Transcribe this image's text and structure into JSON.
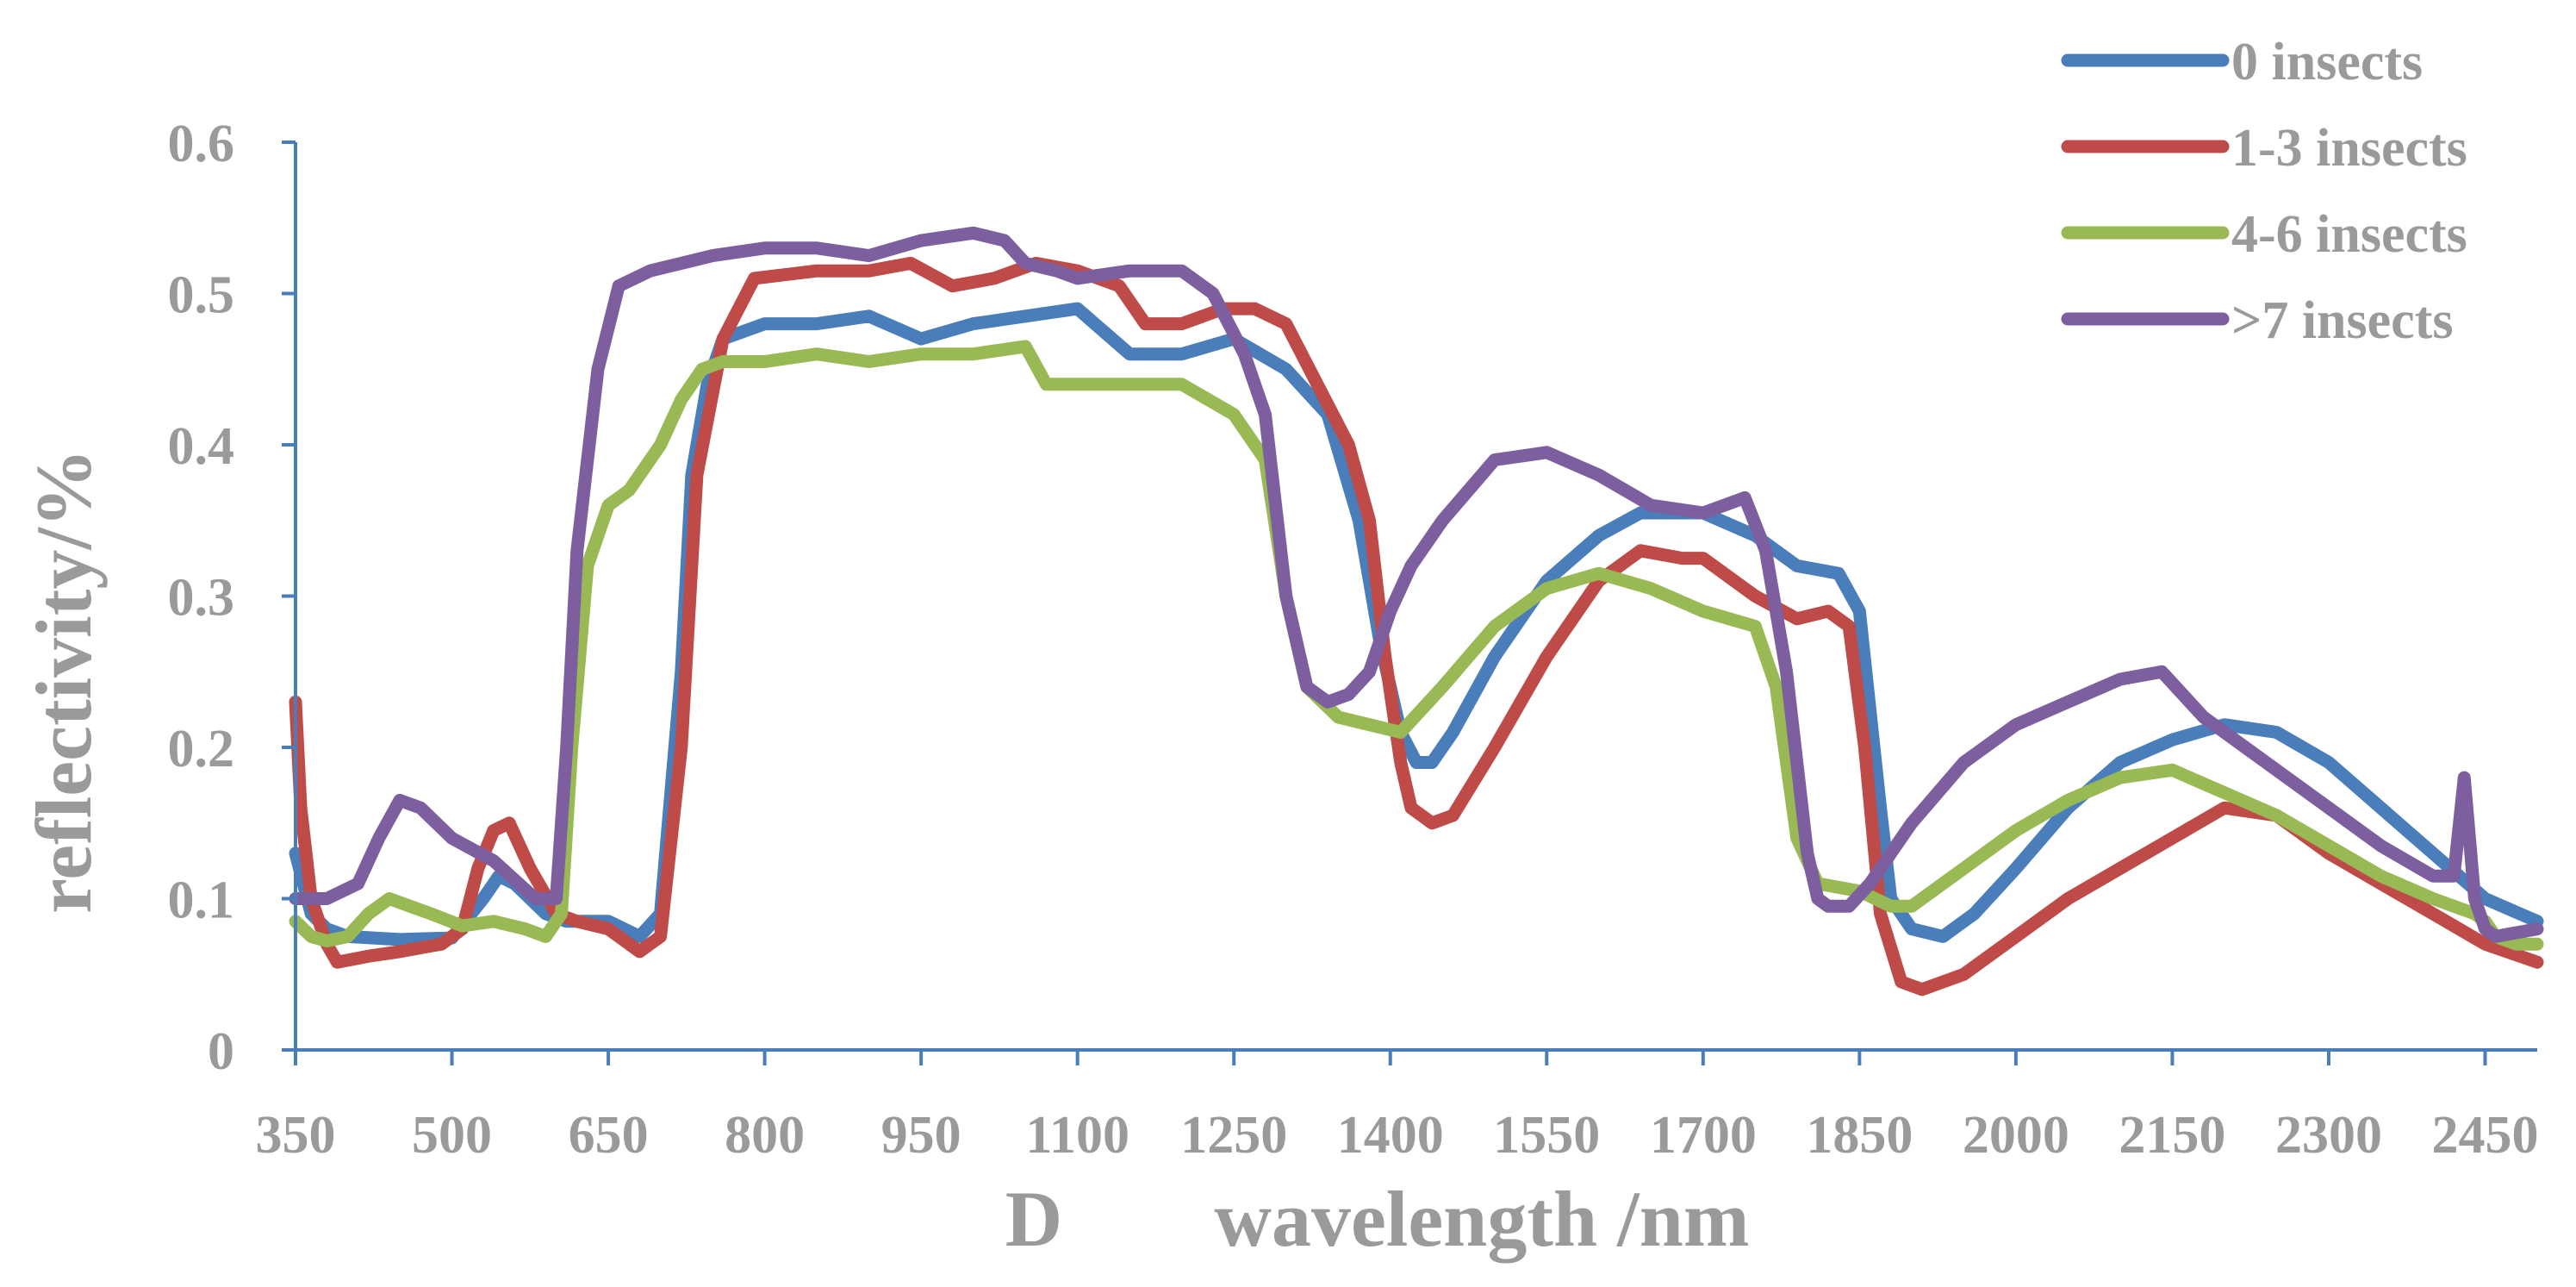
{
  "chart_data": {
    "type": "line",
    "panel_label": "D",
    "xlabel": "wavelength /nm",
    "ylabel": "reflectivity/%",
    "xlim": [
      350,
      2500
    ],
    "ylim": [
      0,
      0.6
    ],
    "x_ticks": [
      350,
      500,
      650,
      800,
      950,
      1100,
      1250,
      1400,
      1550,
      1700,
      1850,
      2000,
      2150,
      2300,
      2450
    ],
    "x_tick_labels": [
      "350",
      "500",
      "650",
      "800",
      "950",
      "1100",
      "1250",
      "1400",
      "1550",
      "1700",
      "1850",
      "2000",
      "2150",
      "2300",
      "2450"
    ],
    "y_ticks": [
      0,
      0.1,
      0.2,
      0.3,
      0.4,
      0.5,
      0.6
    ],
    "y_tick_labels": [
      "0",
      "0.1",
      "0.2",
      "0.3",
      "0.4",
      "0.5",
      "0.6"
    ],
    "legend_position": "top-right",
    "grid": false,
    "series": [
      {
        "name": "0 insects",
        "color": "#4a7ebb",
        "x": [
          350,
          365,
          380,
          400,
          450,
          500,
          530,
          545,
          560,
          590,
          610,
          650,
          680,
          700,
          720,
          730,
          745,
          760,
          800,
          850,
          900,
          950,
          1000,
          1050,
          1100,
          1150,
          1200,
          1250,
          1300,
          1340,
          1370,
          1390,
          1410,
          1425,
          1440,
          1460,
          1500,
          1550,
          1600,
          1640,
          1680,
          1700,
          1750,
          1790,
          1830,
          1850,
          1870,
          1880,
          1900,
          1930,
          1960,
          2000,
          2050,
          2100,
          2150,
          2200,
          2250,
          2300,
          2350,
          2400,
          2450,
          2500
        ],
        "y": [
          0.13,
          0.09,
          0.08,
          0.075,
          0.073,
          0.074,
          0.1,
          0.115,
          0.11,
          0.09,
          0.085,
          0.085,
          0.075,
          0.09,
          0.25,
          0.38,
          0.44,
          0.47,
          0.48,
          0.48,
          0.485,
          0.47,
          0.48,
          0.485,
          0.49,
          0.46,
          0.46,
          0.47,
          0.45,
          0.42,
          0.35,
          0.27,
          0.21,
          0.19,
          0.19,
          0.21,
          0.26,
          0.31,
          0.34,
          0.355,
          0.355,
          0.355,
          0.34,
          0.32,
          0.315,
          0.29,
          0.16,
          0.1,
          0.08,
          0.075,
          0.09,
          0.12,
          0.16,
          0.19,
          0.205,
          0.215,
          0.21,
          0.19,
          0.16,
          0.13,
          0.1,
          0.085
        ]
      },
      {
        "name": "1-3 insects",
        "color": "#be4b48",
        "x": [
          350,
          355,
          365,
          380,
          390,
          420,
          450,
          490,
          510,
          525,
          540,
          555,
          575,
          600,
          620,
          650,
          680,
          700,
          720,
          735,
          760,
          790,
          850,
          900,
          940,
          980,
          1020,
          1060,
          1100,
          1140,
          1165,
          1200,
          1240,
          1270,
          1300,
          1330,
          1360,
          1380,
          1395,
          1410,
          1420,
          1440,
          1460,
          1500,
          1550,
          1600,
          1640,
          1680,
          1700,
          1750,
          1790,
          1820,
          1840,
          1855,
          1870,
          1890,
          1910,
          1950,
          2000,
          2050,
          2100,
          2150,
          2200,
          2250,
          2300,
          2350,
          2400,
          2450,
          2500
        ],
        "y": [
          0.23,
          0.16,
          0.1,
          0.07,
          0.058,
          0.062,
          0.065,
          0.07,
          0.08,
          0.12,
          0.145,
          0.15,
          0.12,
          0.09,
          0.085,
          0.08,
          0.065,
          0.075,
          0.2,
          0.38,
          0.47,
          0.51,
          0.515,
          0.515,
          0.52,
          0.505,
          0.51,
          0.52,
          0.515,
          0.505,
          0.48,
          0.48,
          0.49,
          0.49,
          0.48,
          0.44,
          0.4,
          0.35,
          0.26,
          0.19,
          0.16,
          0.15,
          0.155,
          0.2,
          0.26,
          0.31,
          0.33,
          0.325,
          0.325,
          0.3,
          0.285,
          0.29,
          0.28,
          0.2,
          0.09,
          0.045,
          0.04,
          0.05,
          0.075,
          0.1,
          0.12,
          0.14,
          0.16,
          0.155,
          0.13,
          0.11,
          0.09,
          0.07,
          0.058
        ]
      },
      {
        "name": "4-6 insects",
        "color": "#98b954",
        "x": [
          350,
          365,
          380,
          400,
          420,
          440,
          460,
          480,
          510,
          540,
          570,
          590,
          605,
          615,
          630,
          650,
          670,
          700,
          720,
          740,
          760,
          800,
          850,
          900,
          950,
          1000,
          1050,
          1070,
          1100,
          1150,
          1200,
          1250,
          1280,
          1300,
          1320,
          1350,
          1380,
          1410,
          1450,
          1500,
          1550,
          1600,
          1650,
          1700,
          1750,
          1770,
          1790,
          1810,
          1850,
          1880,
          1900,
          1950,
          2000,
          2050,
          2100,
          2150,
          2200,
          2250,
          2300,
          2350,
          2400,
          2440,
          2450,
          2460,
          2480,
          2500
        ],
        "y": [
          0.085,
          0.075,
          0.072,
          0.075,
          0.09,
          0.1,
          0.095,
          0.09,
          0.082,
          0.085,
          0.08,
          0.075,
          0.09,
          0.2,
          0.32,
          0.36,
          0.37,
          0.4,
          0.43,
          0.45,
          0.455,
          0.455,
          0.46,
          0.455,
          0.46,
          0.46,
          0.465,
          0.44,
          0.44,
          0.44,
          0.44,
          0.42,
          0.39,
          0.3,
          0.24,
          0.22,
          0.215,
          0.21,
          0.24,
          0.28,
          0.305,
          0.315,
          0.305,
          0.29,
          0.28,
          0.24,
          0.14,
          0.11,
          0.105,
          0.095,
          0.095,
          0.12,
          0.145,
          0.165,
          0.18,
          0.185,
          0.17,
          0.155,
          0.135,
          0.115,
          0.1,
          0.09,
          0.085,
          0.075,
          0.07,
          0.07
        ]
      },
      {
        "name": ">7 insects",
        "color": "#7d5fa0",
        "x": [
          350,
          380,
          410,
          430,
          450,
          470,
          500,
          540,
          580,
          600,
          610,
          620,
          640,
          660,
          690,
          720,
          750,
          800,
          850,
          900,
          950,
          1000,
          1030,
          1050,
          1080,
          1100,
          1150,
          1200,
          1230,
          1260,
          1280,
          1300,
          1320,
          1340,
          1360,
          1380,
          1400,
          1420,
          1450,
          1500,
          1550,
          1600,
          1650,
          1700,
          1740,
          1760,
          1780,
          1800,
          1810,
          1820,
          1840,
          1860,
          1900,
          1950,
          2000,
          2050,
          2100,
          2140,
          2180,
          2220,
          2260,
          2300,
          2350,
          2400,
          2420,
          2430,
          2440,
          2450,
          2460,
          2500
        ],
        "y": [
          0.1,
          0.1,
          0.11,
          0.14,
          0.165,
          0.16,
          0.14,
          0.125,
          0.1,
          0.1,
          0.2,
          0.33,
          0.45,
          0.505,
          0.515,
          0.52,
          0.525,
          0.53,
          0.53,
          0.525,
          0.535,
          0.54,
          0.535,
          0.52,
          0.515,
          0.51,
          0.515,
          0.515,
          0.5,
          0.46,
          0.42,
          0.3,
          0.24,
          0.23,
          0.235,
          0.25,
          0.29,
          0.32,
          0.35,
          0.39,
          0.395,
          0.38,
          0.36,
          0.355,
          0.365,
          0.33,
          0.25,
          0.13,
          0.1,
          0.095,
          0.095,
          0.11,
          0.15,
          0.19,
          0.215,
          0.23,
          0.245,
          0.25,
          0.22,
          0.2,
          0.18,
          0.16,
          0.135,
          0.115,
          0.115,
          0.18,
          0.1,
          0.08,
          0.075,
          0.08
        ]
      }
    ]
  }
}
